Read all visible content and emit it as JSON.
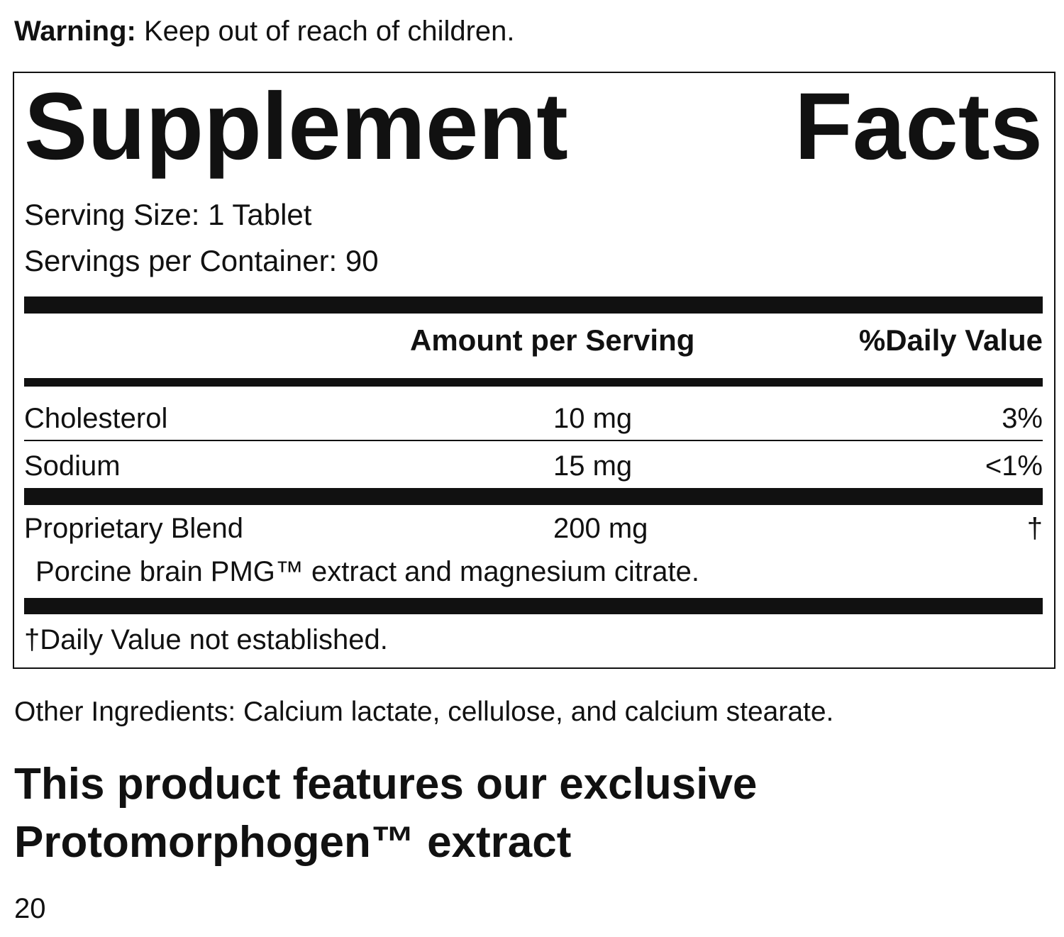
{
  "warning": {
    "label": "Warning:",
    "text": "Keep out of reach of children."
  },
  "facts": {
    "title": "Supplement Facts",
    "serving_size": "Serving Size: 1 Tablet",
    "servings_per_container": "Servings per Container: 90",
    "header": [
      "Amount per Serving",
      "%Daily Value"
    ],
    "rows": [
      [
        "Cholesterol",
        "10 mg",
        "3%"
      ],
      [
        "Sodium",
        "15 mg",
        "<1%"
      ],
      [
        "Proprietary Blend",
        "200 mg",
        "†"
      ]
    ],
    "blend_ingredients": "Porcine brain PMG™ extract and magnesium citrate.",
    "footnote": "†Daily Value not established."
  },
  "other_ingredients": "Other Ingredients: Calcium lactate, cellulose, and calcium stearate.",
  "feature": [
    "This product features our exclusive",
    "Protomorphogen™ extract"
  ],
  "page_number": "20"
}
